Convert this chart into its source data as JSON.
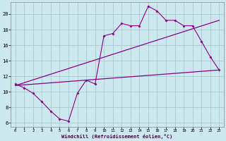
{
  "xlabel": "Windchill (Refroidissement éolien,°C)",
  "background_color": "#cce8ee",
  "grid_color": "#aacccc",
  "line_color": "#880088",
  "hours": [
    0,
    1,
    2,
    3,
    4,
    5,
    6,
    7,
    8,
    9,
    10,
    11,
    12,
    13,
    14,
    15,
    16,
    17,
    18,
    19,
    20,
    21,
    22,
    23
  ],
  "temp": [
    11.0,
    10.5,
    9.8,
    8.7,
    7.5,
    6.5,
    6.2,
    9.8,
    11.5,
    11.0,
    17.2,
    17.5,
    18.8,
    18.5,
    18.5,
    21.0,
    20.4,
    19.2,
    19.2,
    18.5,
    18.5,
    16.5,
    14.5,
    12.8
  ],
  "line1_x": [
    0,
    23
  ],
  "line1_y": [
    10.8,
    12.8
  ],
  "line2_x": [
    0,
    23
  ],
  "line2_y": [
    10.8,
    19.2
  ],
  "xlim": [
    -0.5,
    23.5
  ],
  "ylim": [
    5.5,
    21.5
  ],
  "yticks": [
    6,
    8,
    10,
    12,
    14,
    16,
    18,
    20
  ],
  "xticks": [
    0,
    1,
    2,
    3,
    4,
    5,
    6,
    7,
    8,
    9,
    10,
    11,
    12,
    13,
    14,
    15,
    16,
    17,
    18,
    19,
    20,
    21,
    22,
    23
  ]
}
